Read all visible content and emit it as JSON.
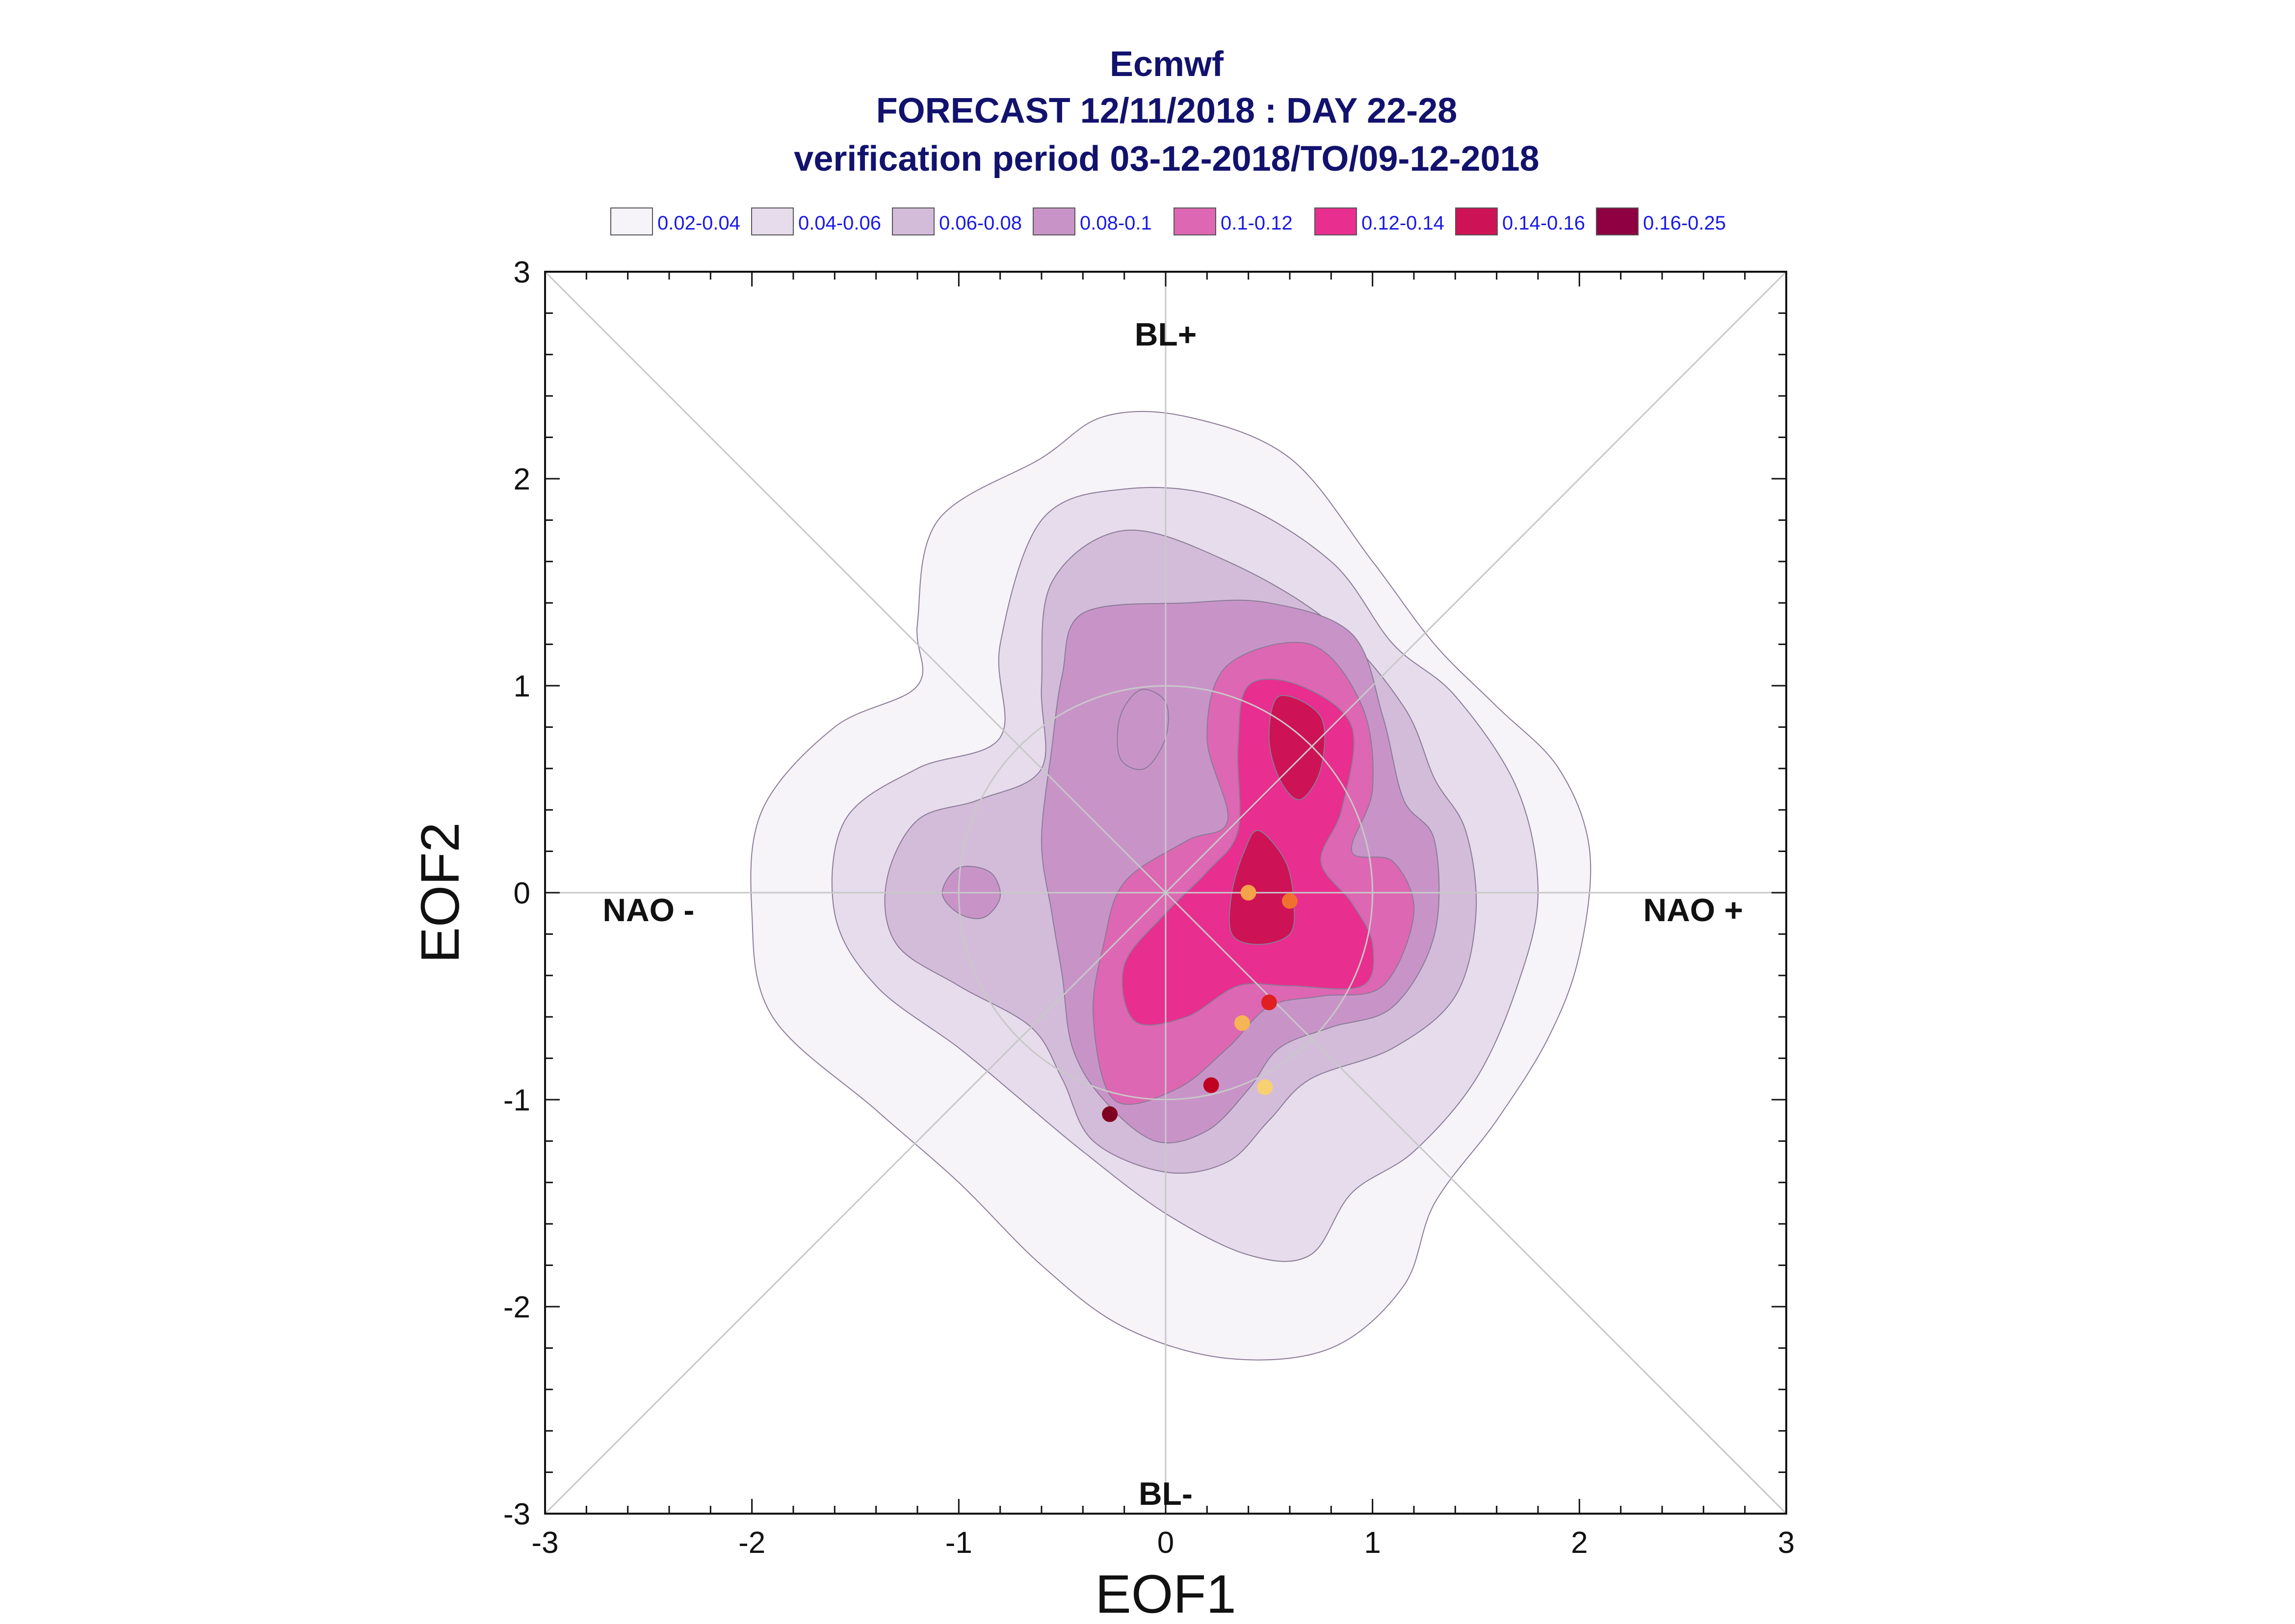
{
  "chart_data": {
    "type": "contour",
    "title": [
      "Ecmwf",
      "FORECAST 12/11/2018 : DAY 22-28",
      "verification period 03-12-2018/TO/09-12-2018"
    ],
    "xlabel": "EOF1",
    "ylabel": "EOF2",
    "xlim": [
      -3,
      3
    ],
    "ylim": [
      -3,
      3
    ],
    "xticks": [
      -3,
      -2,
      -1,
      0,
      1,
      2,
      3
    ],
    "yticks": [
      -3,
      -2,
      -1,
      0,
      1,
      2,
      3
    ],
    "grid": false,
    "legend_placement": "top",
    "legend": [
      {
        "label": "0.02-0.04",
        "color": "#f6f3f9"
      },
      {
        "label": "0.04-0.06",
        "color": "#e6dcec"
      },
      {
        "label": "0.06-0.08",
        "color": "#d3bcd9"
      },
      {
        "label": "0.08-0.1",
        "color": "#c894c8"
      },
      {
        "label": "0.1-0.12",
        "color": "#dd67b2"
      },
      {
        "label": "0.12-0.14",
        "color": "#e82e8e"
      },
      {
        "label": "0.14-0.16",
        "color": "#ce1256"
      },
      {
        "label": "0.16-0.25",
        "color": "#8e0042"
      }
    ],
    "regime_labels": [
      {
        "text": "BL+",
        "x": 0,
        "y": 2.7
      },
      {
        "text": "BL-",
        "x": 0,
        "y": -2.9
      },
      {
        "text": "NAO -",
        "x": -2.5,
        "y": -0.08
      },
      {
        "text": "NAO +",
        "x": 2.55,
        "y": -0.08
      }
    ],
    "circle_radius": 1,
    "contour_levels": [
      {
        "level": "0.02-0.04",
        "color": "#f6f3f9",
        "points": [
          [
            -0.6,
            2.1
          ],
          [
            -0.3,
            2.3
          ],
          [
            0.1,
            2.3
          ],
          [
            0.6,
            2.1
          ],
          [
            1.0,
            1.6
          ],
          [
            1.3,
            1.2
          ],
          [
            1.6,
            0.9
          ],
          [
            1.9,
            0.6
          ],
          [
            2.05,
            0.2
          ],
          [
            2.0,
            -0.3
          ],
          [
            1.85,
            -0.7
          ],
          [
            1.6,
            -1.1
          ],
          [
            1.3,
            -1.5
          ],
          [
            1.15,
            -1.9
          ],
          [
            0.8,
            -2.2
          ],
          [
            0.3,
            -2.25
          ],
          [
            -0.2,
            -2.1
          ],
          [
            -0.6,
            -1.8
          ],
          [
            -1.0,
            -1.4
          ],
          [
            -1.4,
            -1.05
          ],
          [
            -1.9,
            -0.6
          ],
          [
            -2.0,
            -0.1
          ],
          [
            -1.95,
            0.4
          ],
          [
            -1.6,
            0.8
          ],
          [
            -1.2,
            1.0
          ],
          [
            -1.2,
            1.3
          ],
          [
            -1.1,
            1.8
          ]
        ]
      },
      {
        "level": "0.04-0.06",
        "color": "#e6dcec",
        "points": [
          [
            -0.6,
            1.8
          ],
          [
            -0.2,
            1.95
          ],
          [
            0.3,
            1.9
          ],
          [
            0.8,
            1.6
          ],
          [
            1.1,
            1.2
          ],
          [
            1.4,
            0.95
          ],
          [
            1.7,
            0.5
          ],
          [
            1.8,
            0.0
          ],
          [
            1.7,
            -0.45
          ],
          [
            1.5,
            -0.9
          ],
          [
            1.2,
            -1.25
          ],
          [
            0.9,
            -1.45
          ],
          [
            0.7,
            -1.75
          ],
          [
            0.4,
            -1.75
          ],
          [
            0.0,
            -1.55
          ],
          [
            -0.4,
            -1.25
          ],
          [
            -0.7,
            -1.0
          ],
          [
            -1.0,
            -0.75
          ],
          [
            -1.4,
            -0.45
          ],
          [
            -1.6,
            -0.1
          ],
          [
            -1.55,
            0.35
          ],
          [
            -1.2,
            0.6
          ],
          [
            -0.8,
            0.75
          ],
          [
            -0.8,
            1.2
          ]
        ]
      },
      {
        "level": "0.06-0.08",
        "color": "#d3bcd9",
        "points": [
          [
            -0.55,
            1.5
          ],
          [
            -0.2,
            1.75
          ],
          [
            0.3,
            1.6
          ],
          [
            0.8,
            1.3
          ],
          [
            1.15,
            0.9
          ],
          [
            1.3,
            0.55
          ],
          [
            1.45,
            0.3
          ],
          [
            1.5,
            -0.1
          ],
          [
            1.4,
            -0.5
          ],
          [
            1.1,
            -0.75
          ],
          [
            0.7,
            -0.9
          ],
          [
            0.5,
            -1.1
          ],
          [
            0.3,
            -1.3
          ],
          [
            0.0,
            -1.35
          ],
          [
            -0.35,
            -1.2
          ],
          [
            -0.5,
            -0.9
          ],
          [
            -0.65,
            -0.65
          ],
          [
            -1.0,
            -0.45
          ],
          [
            -1.3,
            -0.25
          ],
          [
            -1.35,
            0.05
          ],
          [
            -1.2,
            0.35
          ],
          [
            -0.9,
            0.45
          ],
          [
            -0.6,
            0.6
          ],
          [
            -0.6,
            1.0
          ]
        ]
      },
      {
        "level": "0.08-0.1",
        "color": "#c894c8",
        "points": [
          [
            -0.4,
            1.35
          ],
          [
            0.1,
            1.4
          ],
          [
            0.5,
            1.4
          ],
          [
            0.9,
            1.25
          ],
          [
            1.05,
            0.85
          ],
          [
            1.15,
            0.45
          ],
          [
            1.3,
            0.25
          ],
          [
            1.3,
            -0.2
          ],
          [
            1.1,
            -0.55
          ],
          [
            0.8,
            -0.65
          ],
          [
            0.55,
            -0.75
          ],
          [
            0.4,
            -0.95
          ],
          [
            0.2,
            -1.15
          ],
          [
            -0.05,
            -1.2
          ],
          [
            -0.3,
            -1.0
          ],
          [
            -0.45,
            -0.75
          ],
          [
            -0.5,
            -0.4
          ],
          [
            -0.55,
            -0.1
          ],
          [
            -0.6,
            0.25
          ],
          [
            -0.55,
            0.7
          ],
          [
            -0.5,
            1.05
          ]
        ]
      },
      {
        "level": "0.1-0.12",
        "color": "#dd67b2",
        "points": [
          [
            0.3,
            1.1
          ],
          [
            0.7,
            1.2
          ],
          [
            0.95,
            0.9
          ],
          [
            1.0,
            0.5
          ],
          [
            0.9,
            0.2
          ],
          [
            1.1,
            0.15
          ],
          [
            1.2,
            -0.1
          ],
          [
            1.05,
            -0.45
          ],
          [
            0.75,
            -0.5
          ],
          [
            0.5,
            -0.55
          ],
          [
            0.3,
            -0.75
          ],
          [
            0.05,
            -0.95
          ],
          [
            -0.25,
            -1.0
          ],
          [
            -0.35,
            -0.6
          ],
          [
            -0.3,
            -0.25
          ],
          [
            -0.2,
            0.05
          ],
          [
            0.1,
            0.25
          ],
          [
            0.3,
            0.35
          ],
          [
            0.2,
            0.75
          ]
        ]
      },
      {
        "level": "0.12-0.14",
        "color": "#e82e8e",
        "points": [
          [
            0.4,
            1.0
          ],
          [
            0.65,
            1.0
          ],
          [
            0.9,
            0.8
          ],
          [
            0.85,
            0.4
          ],
          [
            0.75,
            0.15
          ],
          [
            0.9,
            -0.05
          ],
          [
            1.0,
            -0.25
          ],
          [
            0.95,
            -0.45
          ],
          [
            0.6,
            -0.45
          ],
          [
            0.35,
            -0.45
          ],
          [
            0.1,
            -0.6
          ],
          [
            -0.15,
            -0.62
          ],
          [
            -0.2,
            -0.35
          ],
          [
            0.0,
            -0.1
          ],
          [
            0.2,
            0.1
          ],
          [
            0.35,
            0.3
          ],
          [
            0.35,
            0.7
          ]
        ]
      },
      {
        "level": "0.14-0.16",
        "color": "#ce1256",
        "points": [
          [
            0.55,
            0.95
          ],
          [
            0.75,
            0.85
          ],
          [
            0.75,
            0.6
          ],
          [
            0.65,
            0.45
          ],
          [
            0.55,
            0.55
          ],
          [
            0.5,
            0.75
          ]
        ]
      },
      {
        "level": "0.14-0.16",
        "color": "#ce1256",
        "points": [
          [
            0.45,
            0.3
          ],
          [
            0.58,
            0.15
          ],
          [
            0.62,
            -0.05
          ],
          [
            0.6,
            -0.2
          ],
          [
            0.45,
            -0.25
          ],
          [
            0.32,
            -0.2
          ],
          [
            0.32,
            0.0
          ],
          [
            0.38,
            0.2
          ]
        ]
      },
      {
        "level": "0.08-0.1",
        "color": "#c894c8",
        "points": [
          [
            -0.12,
            0.98
          ],
          [
            0.0,
            0.92
          ],
          [
            0.0,
            0.75
          ],
          [
            -0.1,
            0.6
          ],
          [
            -0.22,
            0.65
          ],
          [
            -0.22,
            0.85
          ]
        ]
      },
      {
        "level": "0.08-0.1",
        "color": "#c894c8",
        "points": [
          [
            -1.0,
            0.12
          ],
          [
            -0.85,
            0.1
          ],
          [
            -0.8,
            -0.02
          ],
          [
            -0.88,
            -0.12
          ],
          [
            -1.0,
            -0.1
          ],
          [
            -1.08,
            0.0
          ]
        ]
      }
    ],
    "points": [
      {
        "x": 0.4,
        "y": 0.0,
        "color": "#f4a34a"
      },
      {
        "x": 0.6,
        "y": -0.04,
        "color": "#f07030"
      },
      {
        "x": 0.5,
        "y": -0.53,
        "color": "#e02020"
      },
      {
        "x": 0.37,
        "y": -0.63,
        "color": "#f5b455"
      },
      {
        "x": 0.22,
        "y": -0.93,
        "color": "#c00020"
      },
      {
        "x": 0.48,
        "y": -0.94,
        "color": "#f7d070"
      },
      {
        "x": -0.27,
        "y": -1.07,
        "color": "#800020"
      }
    ]
  }
}
